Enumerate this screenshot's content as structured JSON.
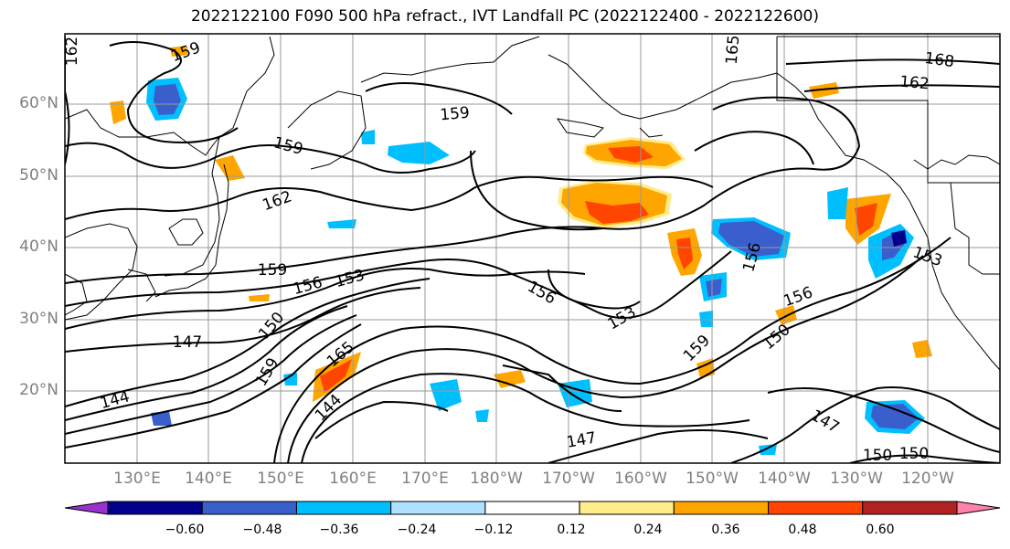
{
  "title": "2022122100 F090 500 hPa refract., IVT Landfall PC (2022122400 - 2022122600)",
  "lat_labels": [
    "60°N",
    "50°N",
    "40°N",
    "30°N",
    "20°N"
  ],
  "lon_labels": [
    "130°E",
    "140°E",
    "150°E",
    "160°E",
    "170°E",
    "180°W",
    "170°W",
    "160°W",
    "150°W",
    "140°W",
    "130°W",
    "120°W"
  ],
  "colorbar": {
    "ticks": [
      "−0.60",
      "−0.48",
      "−0.36",
      "−0.24",
      "−0.12",
      "0.12",
      "0.24",
      "0.36",
      "0.48",
      "0.60"
    ],
    "colors": [
      "#9932cc",
      "#00008b",
      "#3a5fcd",
      "#00bfff",
      "#b0e2ff",
      "#ffffff",
      "#ffec8b",
      "#ffa500",
      "#ff4500",
      "#b22222",
      "#ff82ab"
    ]
  },
  "contour_labels": [
    {
      "text": "162"
    },
    {
      "text": "159"
    },
    {
      "text": "165"
    },
    {
      "text": "168"
    },
    {
      "text": "162"
    },
    {
      "text": "159"
    },
    {
      "text": "159"
    },
    {
      "text": "162"
    },
    {
      "text": "159"
    },
    {
      "text": "156"
    },
    {
      "text": "153"
    },
    {
      "text": "156"
    },
    {
      "text": "153"
    },
    {
      "text": "156"
    },
    {
      "text": "150"
    },
    {
      "text": "147"
    },
    {
      "text": "159"
    },
    {
      "text": "165"
    },
    {
      "text": "144"
    },
    {
      "text": "144"
    },
    {
      "text": "147"
    },
    {
      "text": "147"
    },
    {
      "text": "159"
    },
    {
      "text": "156"
    },
    {
      "text": "150"
    },
    {
      "text": "153"
    },
    {
      "text": "150"
    },
    {
      "text": "150"
    }
  ]
}
